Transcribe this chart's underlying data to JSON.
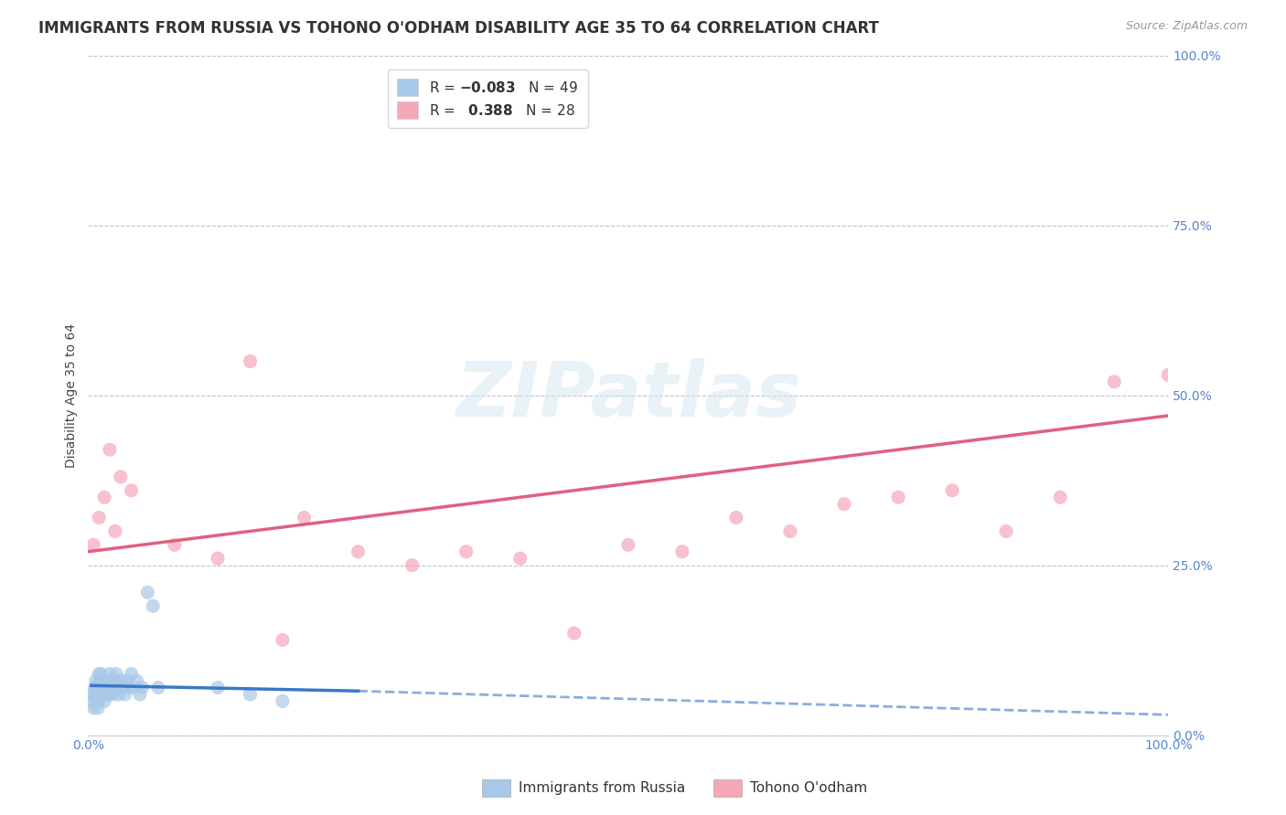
{
  "title": "IMMIGRANTS FROM RUSSIA VS TOHONO O'ODHAM DISABILITY AGE 35 TO 64 CORRELATION CHART",
  "source": "Source: ZipAtlas.com",
  "ylabel": "Disability Age 35 to 64",
  "r_russia": -0.083,
  "n_russia": 49,
  "r_tohono": 0.388,
  "n_tohono": 28,
  "xlim": [
    0.0,
    1.0
  ],
  "ylim": [
    0.0,
    1.0
  ],
  "xtick_labels": [
    "0.0%",
    "100.0%"
  ],
  "ytick_labels": [
    "0.0%",
    "25.0%",
    "50.0%",
    "75.0%",
    "100.0%"
  ],
  "ytick_positions": [
    0.0,
    0.25,
    0.5,
    0.75,
    1.0
  ],
  "color_russia": "#a8c8e8",
  "color_tohono": "#f5a8b8",
  "color_russia_line": "#3a78c8",
  "color_tohono_line": "#e06080",
  "background_color": "#ffffff",
  "grid_color": "#c0c0cc",
  "russia_scatter_x": [
    0.003,
    0.004,
    0.005,
    0.006,
    0.007,
    0.007,
    0.008,
    0.008,
    0.009,
    0.009,
    0.01,
    0.01,
    0.01,
    0.011,
    0.011,
    0.012,
    0.012,
    0.013,
    0.013,
    0.014,
    0.015,
    0.015,
    0.016,
    0.017,
    0.018,
    0.019,
    0.02,
    0.02,
    0.022,
    0.024,
    0.025,
    0.026,
    0.028,
    0.03,
    0.032,
    0.034,
    0.036,
    0.038,
    0.04,
    0.042,
    0.045,
    0.048,
    0.05,
    0.055,
    0.06,
    0.065,
    0.12,
    0.15,
    0.18
  ],
  "russia_scatter_y": [
    0.06,
    0.05,
    0.04,
    0.07,
    0.06,
    0.08,
    0.05,
    0.07,
    0.04,
    0.06,
    0.05,
    0.07,
    0.09,
    0.06,
    0.08,
    0.07,
    0.09,
    0.06,
    0.08,
    0.07,
    0.05,
    0.08,
    0.06,
    0.07,
    0.08,
    0.06,
    0.07,
    0.09,
    0.06,
    0.08,
    0.07,
    0.09,
    0.06,
    0.08,
    0.07,
    0.06,
    0.08,
    0.07,
    0.09,
    0.07,
    0.08,
    0.06,
    0.07,
    0.21,
    0.19,
    0.07,
    0.07,
    0.06,
    0.05
  ],
  "tohono_scatter_x": [
    0.005,
    0.01,
    0.015,
    0.02,
    0.025,
    0.03,
    0.04,
    0.08,
    0.12,
    0.15,
    0.18,
    0.2,
    0.25,
    0.3,
    0.35,
    0.4,
    0.45,
    0.5,
    0.55,
    0.6,
    0.65,
    0.7,
    0.75,
    0.8,
    0.85,
    0.9,
    0.95,
    1.0
  ],
  "tohono_scatter_y": [
    0.28,
    0.32,
    0.35,
    0.42,
    0.3,
    0.38,
    0.36,
    0.28,
    0.26,
    0.55,
    0.14,
    0.32,
    0.27,
    0.25,
    0.27,
    0.26,
    0.15,
    0.28,
    0.27,
    0.32,
    0.3,
    0.34,
    0.35,
    0.36,
    0.3,
    0.35,
    0.52,
    0.53
  ],
  "watermark_text": "ZIPatlas",
  "title_fontsize": 12,
  "axis_label_fontsize": 10,
  "tick_fontsize": 10,
  "legend_fontsize": 11
}
